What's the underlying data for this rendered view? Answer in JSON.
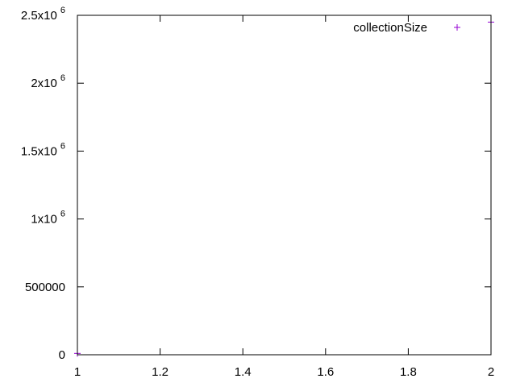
{
  "chart_data": {
    "type": "scatter",
    "title": "",
    "xlabel": "",
    "ylabel": "",
    "xlim": [
      1,
      2
    ],
    "ylim": [
      0,
      2500000
    ],
    "grid": false,
    "legend_position": "top-right",
    "x_ticks": [
      {
        "value": 1,
        "label": "1"
      },
      {
        "value": 1.2,
        "label": "1.2"
      },
      {
        "value": 1.4,
        "label": "1.4"
      },
      {
        "value": 1.6,
        "label": "1.6"
      },
      {
        "value": 1.8,
        "label": "1.8"
      },
      {
        "value": 2,
        "label": "2"
      }
    ],
    "y_ticks": [
      {
        "value": 0,
        "base": "0",
        "sup": ""
      },
      {
        "value": 500000,
        "base": "500000",
        "sup": ""
      },
      {
        "value": 1000000,
        "base": "1x10",
        "sup": "6"
      },
      {
        "value": 1500000,
        "base": "1.5x10",
        "sup": "6"
      },
      {
        "value": 2000000,
        "base": "2x10",
        "sup": "6"
      },
      {
        "value": 2500000,
        "base": "2.5x10",
        "sup": "6"
      }
    ],
    "series": [
      {
        "name": "collectionSize",
        "color": "#9400d3",
        "marker": "plus",
        "points": [
          {
            "x": 1,
            "y": 10000
          },
          {
            "x": 2,
            "y": 2450000
          }
        ]
      }
    ]
  }
}
